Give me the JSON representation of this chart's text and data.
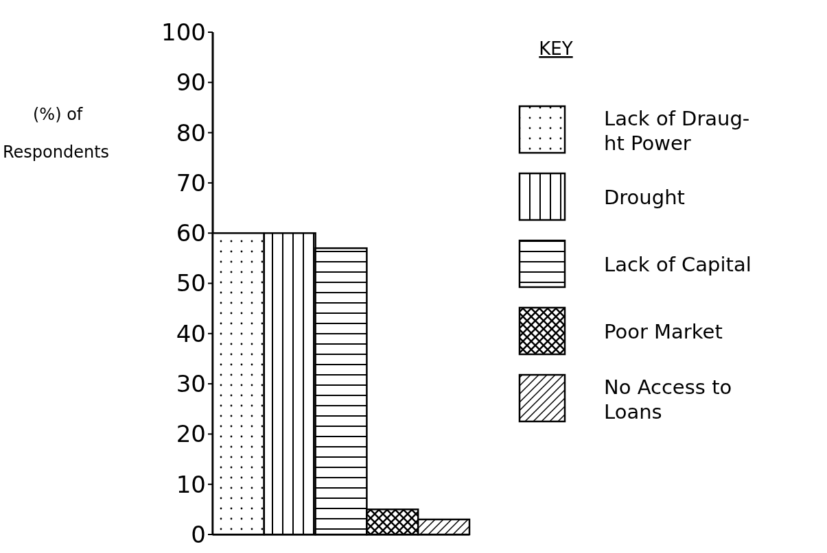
{
  "chart_data": {
    "type": "bar",
    "ylabel": "(%) of\nRespondents",
    "legend_title": "KEY",
    "legend": "right",
    "categories": [
      null,
      null,
      null,
      null,
      null
    ],
    "series": [
      {
        "name": "Lack of Draug-\nht Power",
        "color": "#000000",
        "values": [
          60,
          null,
          null,
          null,
          null
        ]
      },
      {
        "name": "Drought",
        "color": "#000000",
        "values": [
          null,
          60,
          null,
          null,
          null
        ]
      },
      {
        "name": "Lack of Capital",
        "color": "#000000",
        "values": [
          null,
          null,
          57,
          null,
          null
        ]
      },
      {
        "name": "Poor Market",
        "color": "#000000",
        "values": [
          null,
          null,
          null,
          5,
          null
        ]
      },
      {
        "name": "No Access to\nLoans",
        "color": "#000000",
        "values": [
          null,
          null,
          null,
          null,
          3
        ]
      }
    ],
    "ylim": [
      0,
      100
    ],
    "yticks": [
      0,
      10,
      20,
      30,
      40,
      50,
      60,
      70,
      80,
      90,
      100
    ]
  }
}
